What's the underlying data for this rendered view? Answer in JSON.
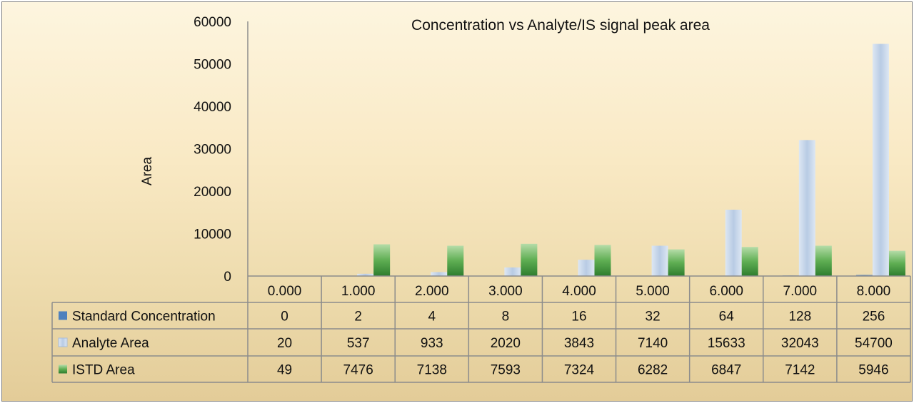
{
  "chart_data": {
    "type": "bar",
    "title": "Concentration vs Analyte/IS signal peak area",
    "ylabel": "Area",
    "xlabel": "",
    "ylim": [
      0,
      60000
    ],
    "yticks": [
      0,
      10000,
      20000,
      30000,
      40000,
      50000,
      60000
    ],
    "grid": false,
    "legend": "data-table",
    "categories": [
      "0.000",
      "1.000",
      "2.000",
      "3.000",
      "4.000",
      "5.000",
      "6.000",
      "7.000",
      "8.000"
    ],
    "series": [
      {
        "name": "Standard Concentration",
        "color": "#4f81bd",
        "values": [
          0,
          2,
          4,
          8,
          16,
          32,
          64,
          128,
          256
        ]
      },
      {
        "name": "Analyte Area",
        "color": "#b9cde6",
        "values": [
          20,
          537,
          933,
          2020,
          3843,
          7140,
          15633,
          32043,
          54700
        ]
      },
      {
        "name": "ISTD Area",
        "color": "#3f9a3f",
        "values": [
          49,
          7476,
          7138,
          7593,
          7324,
          6282,
          6847,
          7142,
          5946
        ]
      }
    ]
  }
}
